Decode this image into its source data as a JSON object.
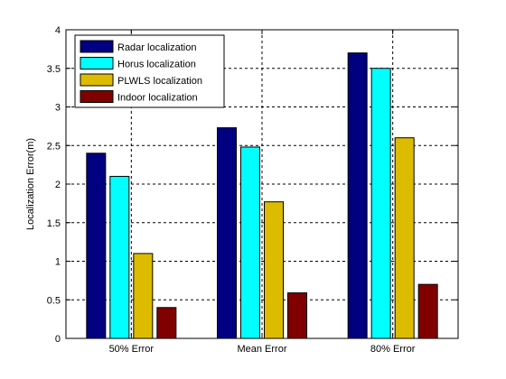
{
  "chart_data": {
    "type": "bar",
    "title": "",
    "xlabel": "",
    "ylabel": "Localization Error(m)",
    "ylim": [
      0,
      4
    ],
    "yticks": [
      0,
      0.5,
      1,
      1.5,
      2,
      2.5,
      3,
      3.5,
      4
    ],
    "grid": true,
    "legend_position": "top-left",
    "categories": [
      "50% Error",
      "Mean Error",
      "80% Error"
    ],
    "series": [
      {
        "name": "Radar localization",
        "color": "#000080",
        "values": [
          2.4,
          2.73,
          3.7
        ]
      },
      {
        "name": "Horus localization",
        "color": "#00FFFF",
        "values": [
          2.1,
          2.48,
          3.5
        ]
      },
      {
        "name": "PLWLS localization",
        "color": "#DDBB00",
        "values": [
          1.1,
          1.77,
          2.6
        ]
      },
      {
        "name": "Indoor localization",
        "color": "#800000",
        "values": [
          0.4,
          0.59,
          0.7
        ]
      }
    ]
  }
}
